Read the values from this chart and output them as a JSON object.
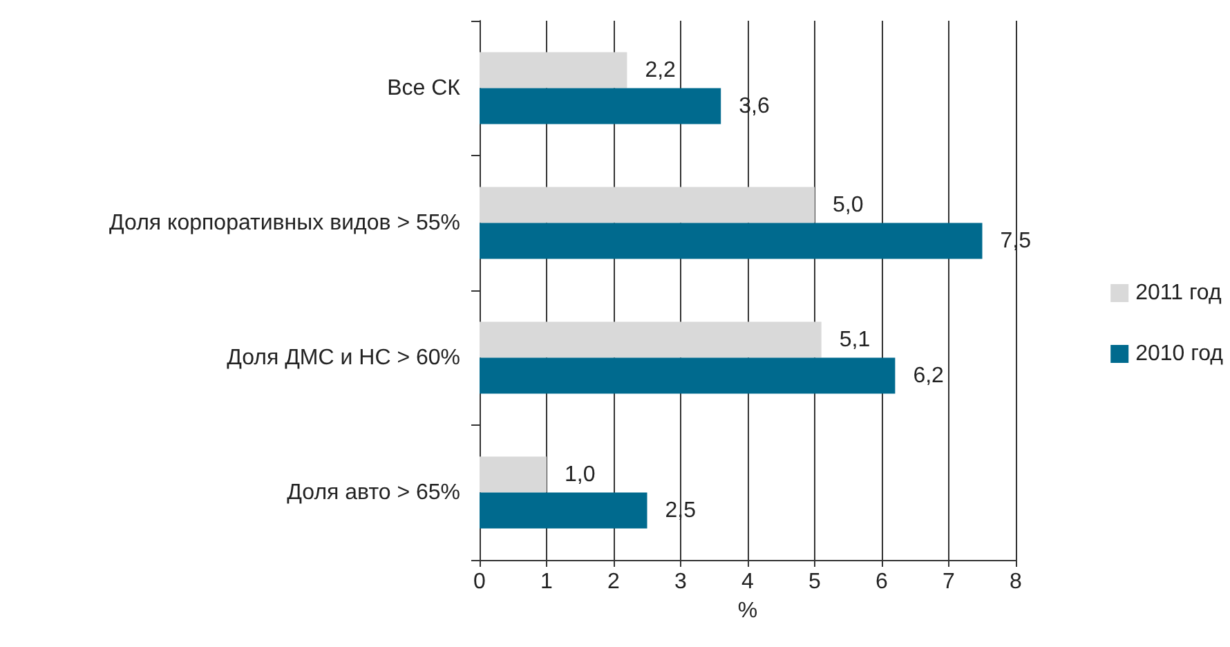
{
  "chart_data": {
    "type": "bar",
    "orientation": "horizontal",
    "xlabel": "%",
    "categories": [
      "Все СК",
      "Доля корпоративных видов > 55%",
      "Доля ДМС и НС > 60%",
      "Доля авто > 65%"
    ],
    "series": [
      {
        "name": "2011 год",
        "color": "#d9d9d9",
        "values": [
          2.2,
          5.0,
          5.1,
          1.0
        ],
        "value_labels": [
          "2,2",
          "5,0",
          "5,1",
          "1,0"
        ]
      },
      {
        "name": "2010 год",
        "color": "#006a8e",
        "values": [
          3.6,
          7.5,
          6.2,
          2.5
        ],
        "value_labels": [
          "3,6",
          "7,5",
          "6,2",
          "2,5"
        ]
      }
    ],
    "xlim": [
      0,
      8
    ],
    "xticks": [
      0,
      1,
      2,
      3,
      4,
      5,
      6,
      7,
      8
    ],
    "grid": "x",
    "legend": "right"
  }
}
